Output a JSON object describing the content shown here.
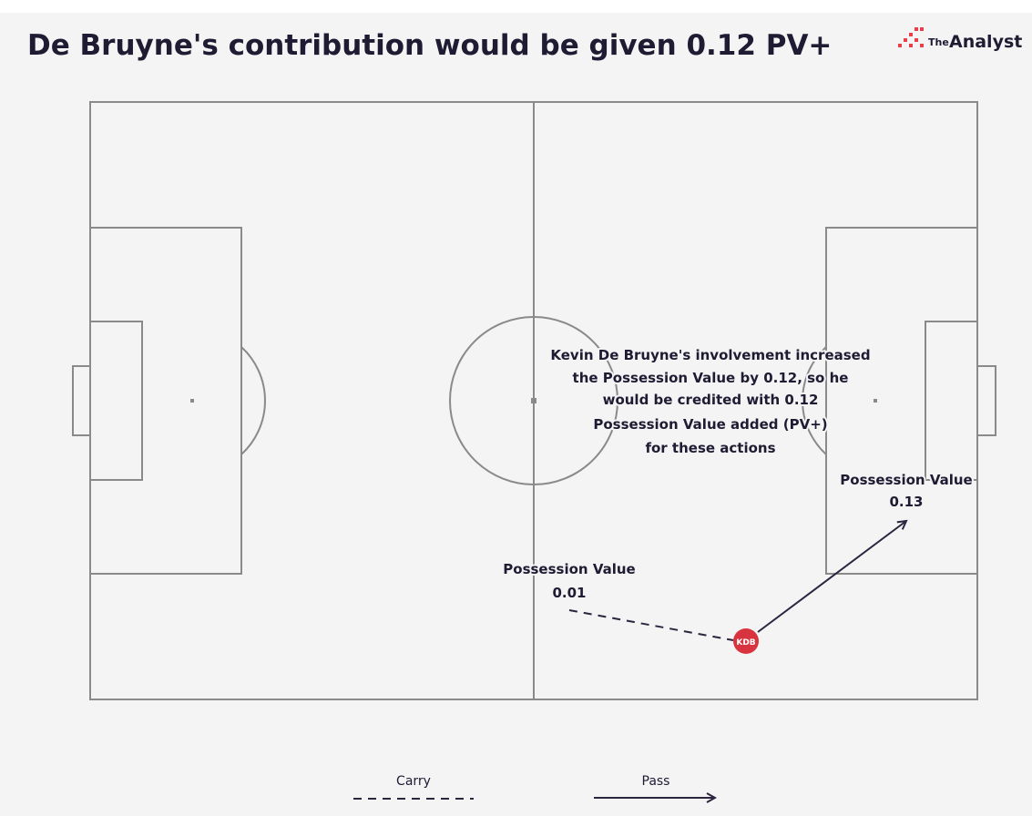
{
  "title": "De Bruyne's contribution would be given 0.12 PV+",
  "logo": {
    "small": "The",
    "large": "Analyst"
  },
  "annotation": [
    "Kevin De Bruyne's involvement increased",
    "the Possession Value by 0.12, so he",
    "would be credited with 0.12",
    "Possession Value added (PV+)",
    "for these actions"
  ],
  "start": {
    "label": "Possession Value",
    "value": "0.01"
  },
  "end": {
    "label": "Possession Value",
    "value": "0.13"
  },
  "player": "KDB",
  "legend": {
    "carry": "Carry",
    "pass": "Pass"
  }
}
